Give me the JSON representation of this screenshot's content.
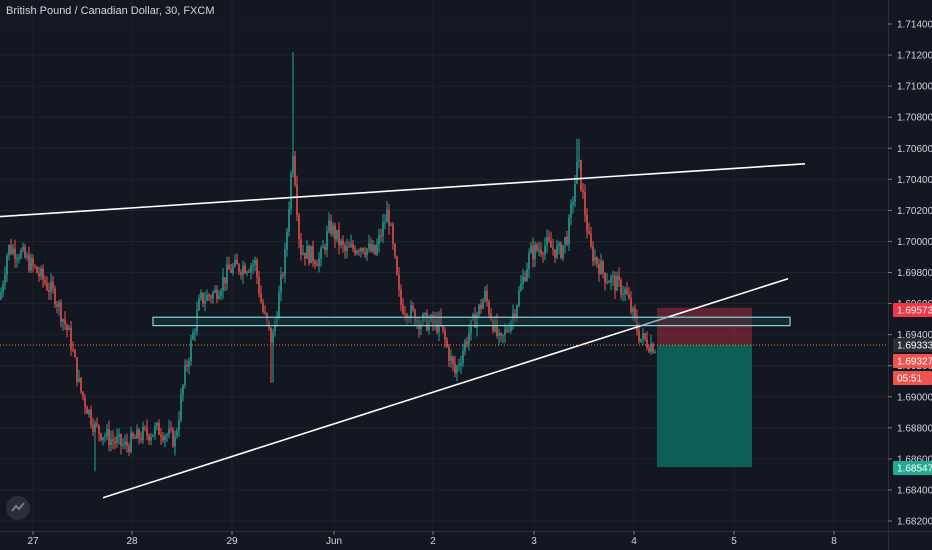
{
  "header": {
    "title": "British Pound / Canadian Dollar, 30, FXCM"
  },
  "chart_data": {
    "type": "candlestick",
    "title": "British Pound / Canadian Dollar, 30, FXCM",
    "symbol": "British Pound / Canadian Dollar",
    "interval": "30",
    "source": "FXCM",
    "xlabel": "",
    "ylabel": "",
    "ylim": [
      1.6818,
      1.7151
    ],
    "y_ticks": [
      "1.71400",
      "1.71200",
      "1.71000",
      "1.70800",
      "1.70600",
      "1.70400",
      "1.70200",
      "1.70000",
      "1.69800",
      "1.69600",
      "1.69400",
      "1.69200",
      "1.69000",
      "1.68800",
      "1.68600",
      "1.68400",
      "1.68200"
    ],
    "x_ticks": [
      "27",
      "28",
      "29",
      "Jun",
      "2",
      "3",
      "4",
      "5",
      "8"
    ],
    "up_color": "#26a69a",
    "down_color": "#ef5350",
    "background": "#131722",
    "price_labels": [
      {
        "text": "1.69573",
        "value": 1.69573,
        "color": "#f23645"
      },
      {
        "text": "1.69333",
        "value": 1.69333,
        "color": "#2a2e39"
      },
      {
        "text": "1.69327",
        "value": 1.69327,
        "color": "#ef5350"
      },
      {
        "text": "05:51",
        "value": 1.6925,
        "color": "#ef5350"
      },
      {
        "text": "1.68547",
        "value": 1.68547,
        "color": "#22ab94"
      }
    ],
    "anchors": [
      {
        "x": 0,
        "y": 1.6963
      },
      {
        "x": 8,
        "y": 1.6996
      },
      {
        "x": 20,
        "y": 1.6993
      },
      {
        "x": 40,
        "y": 1.6978
      },
      {
        "x": 55,
        "y": 1.6965
      },
      {
        "x": 70,
        "y": 1.6938
      },
      {
        "x": 80,
        "y": 1.6905
      },
      {
        "x": 95,
        "y": 1.688
      },
      {
        "x": 110,
        "y": 1.6873
      },
      {
        "x": 125,
        "y": 1.6868
      },
      {
        "x": 140,
        "y": 1.6875
      },
      {
        "x": 160,
        "y": 1.6879
      },
      {
        "x": 175,
        "y": 1.6872
      },
      {
        "x": 185,
        "y": 1.6915
      },
      {
        "x": 200,
        "y": 1.6962
      },
      {
        "x": 215,
        "y": 1.6967
      },
      {
        "x": 230,
        "y": 1.6982
      },
      {
        "x": 255,
        "y": 1.6986
      },
      {
        "x": 262,
        "y": 1.6957
      },
      {
        "x": 272,
        "y": 1.6935
      },
      {
        "x": 285,
        "y": 1.699
      },
      {
        "x": 293,
        "y": 1.706
      },
      {
        "x": 300,
        "y": 1.6995
      },
      {
        "x": 320,
        "y": 1.6988
      },
      {
        "x": 330,
        "y": 1.701
      },
      {
        "x": 345,
        "y": 1.6993
      },
      {
        "x": 360,
        "y": 1.6998
      },
      {
        "x": 375,
        "y": 1.6992
      },
      {
        "x": 388,
        "y": 1.702
      },
      {
        "x": 400,
        "y": 1.696
      },
      {
        "x": 420,
        "y": 1.6949
      },
      {
        "x": 440,
        "y": 1.6946
      },
      {
        "x": 455,
        "y": 1.6915
      },
      {
        "x": 468,
        "y": 1.694
      },
      {
        "x": 485,
        "y": 1.6965
      },
      {
        "x": 500,
        "y": 1.6933
      },
      {
        "x": 515,
        "y": 1.6957
      },
      {
        "x": 530,
        "y": 1.6992
      },
      {
        "x": 545,
        "y": 1.6998
      },
      {
        "x": 560,
        "y": 1.6993
      },
      {
        "x": 568,
        "y": 1.7005
      },
      {
        "x": 578,
        "y": 1.7052
      },
      {
        "x": 590,
        "y": 1.6995
      },
      {
        "x": 605,
        "y": 1.6978
      },
      {
        "x": 625,
        "y": 1.6968
      },
      {
        "x": 640,
        "y": 1.6938
      },
      {
        "x": 656,
        "y": 1.6932
      }
    ],
    "drawings": [
      {
        "type": "trendline",
        "points": [
          [
            0,
            1.7016
          ],
          [
            805,
            1.705
          ]
        ],
        "color": "#ffffff"
      },
      {
        "type": "trendline",
        "points": [
          [
            103,
            1.6835
          ],
          [
            788,
            1.6976
          ]
        ],
        "color": "#ffffff"
      },
      {
        "type": "zone",
        "x": [
          153,
          790
        ],
        "y": [
          1.69458,
          1.69512
        ],
        "border": "#7fd8e3",
        "fill": "#1f3a3e"
      },
      {
        "type": "stop_zone",
        "x": [
          657,
          752
        ],
        "y": [
          1.69333,
          1.69573
        ],
        "color": "#f23645"
      },
      {
        "type": "target_zone",
        "x": [
          657,
          752
        ],
        "y": [
          1.68547,
          1.69333
        ],
        "color": "#089981"
      },
      {
        "type": "last_price_line",
        "y": 1.69333,
        "color": "#f57c3e"
      }
    ]
  }
}
